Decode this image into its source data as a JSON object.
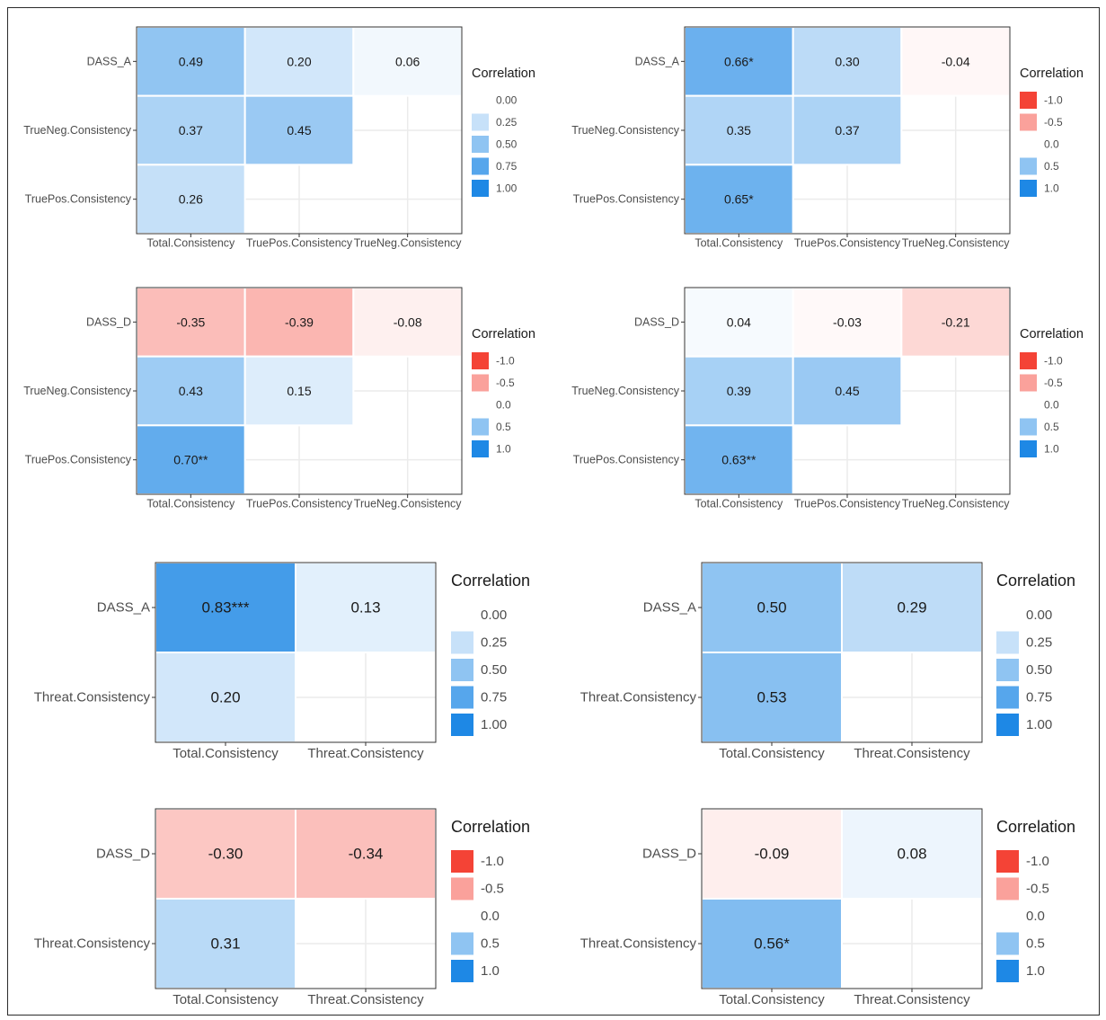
{
  "legend_title": "Correlation",
  "colors": {
    "negative_strong": "#f44336",
    "neutral": "#ffffff",
    "positive_strong": "#1e88e5",
    "grid": "#ebebeb",
    "panel_border": "#333333"
  },
  "chart_data": [
    {
      "type": "heatmap",
      "title": "",
      "rows": [
        "DASS_A",
        "TrueNeg.Consistency",
        "TruePos.Consistency"
      ],
      "columns": [
        "Total.Consistency",
        "TruePos.Consistency",
        "TrueNeg.Consistency"
      ],
      "values": [
        [
          0.49,
          0.2,
          0.06
        ],
        [
          0.37,
          0.45,
          null
        ],
        [
          0.26,
          null,
          null
        ]
      ],
      "labels": [
        [
          "0.49",
          "0.20",
          "0.06"
        ],
        [
          "0.37",
          "0.45",
          ""
        ],
        [
          "0.26",
          "",
          ""
        ]
      ],
      "legend": {
        "title": "Correlation",
        "breaks": [
          "0.00",
          "0.25",
          "0.50",
          "0.75",
          "1.00"
        ],
        "values": [
          0,
          0.25,
          0.5,
          0.75,
          1
        ]
      }
    },
    {
      "type": "heatmap",
      "title": "",
      "rows": [
        "DASS_A",
        "TrueNeg.Consistency",
        "TruePos.Consistency"
      ],
      "columns": [
        "Total.Consistency",
        "TruePos.Consistency",
        "TrueNeg.Consistency"
      ],
      "values": [
        [
          0.66,
          0.3,
          -0.04
        ],
        [
          0.35,
          0.37,
          null
        ],
        [
          0.65,
          null,
          null
        ]
      ],
      "labels": [
        [
          "0.66*",
          "0.30",
          "-0.04"
        ],
        [
          "0.35",
          "0.37",
          ""
        ],
        [
          "0.65*",
          "",
          ""
        ]
      ],
      "legend": {
        "title": "Correlation",
        "breaks": [
          "-1.0",
          "-0.5",
          "0.0",
          "0.5",
          "1.0"
        ],
        "values": [
          -1,
          -0.5,
          0,
          0.5,
          1
        ]
      }
    },
    {
      "type": "heatmap",
      "title": "",
      "rows": [
        "DASS_D",
        "TrueNeg.Consistency",
        "TruePos.Consistency"
      ],
      "columns": [
        "Total.Consistency",
        "TruePos.Consistency",
        "TrueNeg.Consistency"
      ],
      "values": [
        [
          -0.35,
          -0.39,
          -0.08
        ],
        [
          0.43,
          0.15,
          null
        ],
        [
          0.7,
          null,
          null
        ]
      ],
      "labels": [
        [
          "-0.35",
          "-0.39",
          "-0.08"
        ],
        [
          "0.43",
          "0.15",
          ""
        ],
        [
          "0.70**",
          "",
          ""
        ]
      ],
      "legend": {
        "title": "Correlation",
        "breaks": [
          "-1.0",
          "-0.5",
          "0.0",
          "0.5",
          "1.0"
        ],
        "values": [
          -1,
          -0.5,
          0,
          0.5,
          1
        ]
      }
    },
    {
      "type": "heatmap",
      "title": "",
      "rows": [
        "DASS_D",
        "TrueNeg.Consistency",
        "TruePos.Consistency"
      ],
      "columns": [
        "Total.Consistency",
        "TruePos.Consistency",
        "TrueNeg.Consistency"
      ],
      "values": [
        [
          0.04,
          -0.03,
          -0.21
        ],
        [
          0.39,
          0.45,
          null
        ],
        [
          0.63,
          null,
          null
        ]
      ],
      "labels": [
        [
          "0.04",
          "-0.03",
          "-0.21"
        ],
        [
          "0.39",
          "0.45",
          ""
        ],
        [
          "0.63**",
          "",
          ""
        ]
      ],
      "legend": {
        "title": "Correlation",
        "breaks": [
          "-1.0",
          "-0.5",
          "0.0",
          "0.5",
          "1.0"
        ],
        "values": [
          -1,
          -0.5,
          0,
          0.5,
          1
        ]
      }
    },
    {
      "type": "heatmap",
      "title": "",
      "rows": [
        "DASS_A",
        "Threat.Consistency"
      ],
      "columns": [
        "Total.Consistency",
        "Threat.Consistency"
      ],
      "values": [
        [
          0.83,
          0.13
        ],
        [
          0.2,
          null
        ]
      ],
      "labels": [
        [
          "0.83***",
          "0.13"
        ],
        [
          "0.20",
          ""
        ]
      ],
      "legend": {
        "title": "Correlation",
        "breaks": [
          "0.00",
          "0.25",
          "0.50",
          "0.75",
          "1.00"
        ],
        "values": [
          0,
          0.25,
          0.5,
          0.75,
          1
        ]
      }
    },
    {
      "type": "heatmap",
      "title": "",
      "rows": [
        "DASS_A",
        "Threat.Consistency"
      ],
      "columns": [
        "Total.Consistency",
        "Threat.Consistency"
      ],
      "values": [
        [
          0.5,
          0.29
        ],
        [
          0.53,
          null
        ]
      ],
      "labels": [
        [
          "0.50",
          "0.29"
        ],
        [
          "0.53",
          ""
        ]
      ],
      "legend": {
        "title": "Correlation",
        "breaks": [
          "0.00",
          "0.25",
          "0.50",
          "0.75",
          "1.00"
        ],
        "values": [
          0,
          0.25,
          0.5,
          0.75,
          1
        ]
      }
    },
    {
      "type": "heatmap",
      "title": "",
      "rows": [
        "DASS_D",
        "Threat.Consistency"
      ],
      "columns": [
        "Total.Consistency",
        "Threat.Consistency"
      ],
      "values": [
        [
          -0.3,
          -0.34
        ],
        [
          0.31,
          null
        ]
      ],
      "labels": [
        [
          "-0.30",
          "-0.34"
        ],
        [
          "0.31",
          ""
        ]
      ],
      "legend": {
        "title": "Correlation",
        "breaks": [
          "-1.0",
          "-0.5",
          "0.0",
          "0.5",
          "1.0"
        ],
        "values": [
          -1,
          -0.5,
          0,
          0.5,
          1
        ]
      }
    },
    {
      "type": "heatmap",
      "title": "",
      "rows": [
        "DASS_D",
        "Threat.Consistency"
      ],
      "columns": [
        "Total.Consistency",
        "Threat.Consistency"
      ],
      "values": [
        [
          -0.09,
          0.08
        ],
        [
          0.56,
          null
        ]
      ],
      "labels": [
        [
          "-0.09",
          "0.08"
        ],
        [
          "0.56*",
          ""
        ]
      ],
      "legend": {
        "title": "Correlation",
        "breaks": [
          "-1.0",
          "-0.5",
          "0.0",
          "0.5",
          "1.0"
        ],
        "values": [
          -1,
          -0.5,
          0,
          0.5,
          1
        ]
      }
    }
  ]
}
